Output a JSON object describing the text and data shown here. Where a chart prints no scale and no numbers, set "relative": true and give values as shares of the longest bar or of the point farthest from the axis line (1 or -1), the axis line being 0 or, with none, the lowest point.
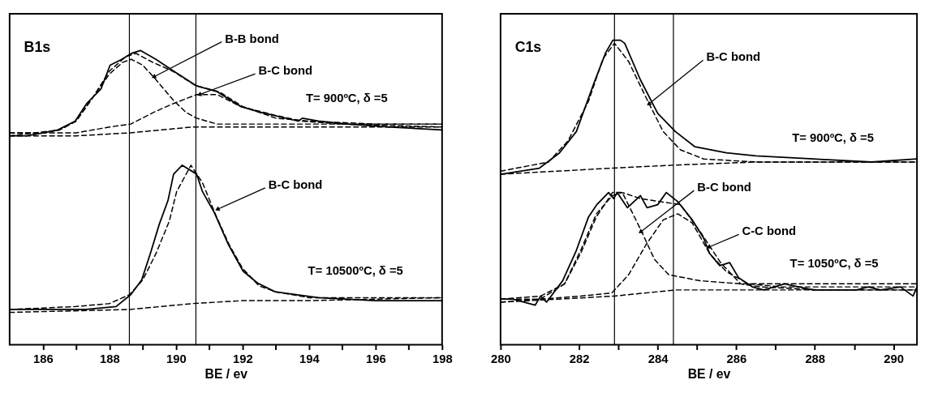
{
  "chart_data": [
    {
      "type": "line",
      "title": "B1s",
      "xlabel": "BE / ev",
      "relative": true,
      "xlim": [
        185,
        198
      ],
      "xticks": [
        186,
        {
          "value": 187,
          "label": null
        },
        188,
        {
          "value": 189,
          "label": null
        },
        190,
        {
          "value": 191,
          "label": null
        },
        192,
        {
          "value": 193,
          "label": null
        },
        194,
        {
          "value": 195,
          "label": null
        },
        196,
        {
          "value": 197,
          "label": null
        },
        198
      ],
      "grid": false,
      "tick_labels": "x",
      "series": [
        {
          "color": "#000000",
          "line_style": "solid",
          "x": [
            185,
            185.5,
            186,
            186.45,
            186.97,
            187.32,
            187.75,
            188.02,
            188.37,
            188.66,
            188.93,
            189.4,
            189.93,
            190.62,
            191.24,
            191.94,
            192.54,
            193.68,
            193.8,
            194.28,
            195.15,
            196.46,
            198
          ],
          "values": [
            0.71,
            0.71,
            0.72,
            0.73,
            0.76,
            0.82,
            0.87,
            0.95,
            0.97,
            0.99,
            1,
            0.97,
            0.93,
            0.88,
            0.86,
            0.81,
            0.79,
            0.76,
            0.77,
            0.76,
            0.75,
            0.74,
            0.73
          ]
        },
        {
          "color": "#000000",
          "line_style": "dashed",
          "x": [
            185,
            186.5,
            187,
            187.5,
            188,
            188.5,
            188.8,
            189.3,
            189.9,
            190.6,
            191.3,
            192,
            193,
            194,
            196,
            198
          ],
          "values": [
            0.71,
            0.73,
            0.76,
            0.84,
            0.93,
            0.98,
            0.99,
            0.96,
            0.93,
            0.88,
            0.86,
            0.81,
            0.77,
            0.76,
            0.75,
            0.75
          ]
        },
        {
          "color": "#000000",
          "line_style": "dashed",
          "x": [
            185,
            186,
            186.5,
            187,
            187.5,
            188,
            188.4,
            188.66,
            189,
            189.33,
            189.93,
            190.3,
            190.62,
            191.24,
            192,
            194,
            198
          ],
          "values": [
            0.72,
            0.72,
            0.73,
            0.76,
            0.84,
            0.92,
            0.96,
            0.97,
            0.95,
            0.91,
            0.83,
            0.79,
            0.77,
            0.75,
            0.75,
            0.75,
            0.75
          ]
        },
        {
          "color": "#000000",
          "line_style": "dashed",
          "x": [
            185,
            187,
            188,
            188.64,
            189.33,
            189.93,
            190.62,
            191.24,
            191.94,
            192.97,
            193.8,
            195,
            198
          ],
          "values": [
            0.72,
            0.72,
            0.74,
            0.75,
            0.79,
            0.82,
            0.85,
            0.85,
            0.81,
            0.78,
            0.76,
            0.75,
            0.74
          ]
        },
        {
          "color": "#000000",
          "line_style": "dashed",
          "x": [
            185,
            187,
            188.6,
            190.5,
            193,
            198
          ],
          "values": [
            0.71,
            0.71,
            0.72,
            0.74,
            0.74,
            0.74
          ]
        },
        {
          "color": "#000000",
          "line_style": "solid",
          "x": [
            185,
            187.3,
            188.2,
            188.64,
            188.97,
            189.23,
            189.5,
            189.76,
            189.93,
            190.19,
            190.62,
            190.8,
            191.15,
            191.58,
            192.02,
            192.45,
            192.98,
            194.28,
            196,
            198
          ],
          "values": [
            0.12,
            0.12,
            0.13,
            0.17,
            0.22,
            0.31,
            0.41,
            0.49,
            0.58,
            0.61,
            0.58,
            0.52,
            0.45,
            0.34,
            0.25,
            0.21,
            0.18,
            0.16,
            0.15,
            0.15
          ]
        },
        {
          "color": "#000000",
          "line_style": "dashed",
          "x": [
            185,
            187,
            188,
            188.6,
            189,
            189.4,
            189.8,
            190.02,
            190.45,
            190.8,
            191.2,
            191.6,
            192,
            192.5,
            193,
            194,
            196,
            198
          ],
          "values": [
            0.12,
            0.13,
            0.14,
            0.17,
            0.22,
            0.31,
            0.42,
            0.52,
            0.61,
            0.55,
            0.44,
            0.34,
            0.26,
            0.2,
            0.18,
            0.16,
            0.16,
            0.16
          ]
        },
        {
          "color": "#000000",
          "line_style": "dashed",
          "x": [
            185,
            188.6,
            190.5,
            192,
            194,
            198
          ],
          "values": [
            0.11,
            0.12,
            0.14,
            0.15,
            0.15,
            0.16
          ]
        }
      ],
      "ref_lines": [
        {
          "axis": "x",
          "value": 188.6,
          "color": "#000000"
        },
        {
          "axis": "x",
          "value": 190.6,
          "color": "#000000"
        }
      ],
      "annotations": [
        {
          "text": "B-B bond",
          "x": 189.33,
          "y": 0.91
        },
        {
          "text": "B-C bond",
          "x": 190.7,
          "y": 0.85
        },
        {
          "text": "B-C bond",
          "x": 191.24,
          "y": 0.46
        },
        "T= 900ºC, δ =5",
        "T= 10500ºC, δ =5"
      ]
    },
    {
      "type": "line",
      "title": "C1s",
      "xlabel": "BE / ev",
      "relative": true,
      "xlim": [
        280,
        290.6
      ],
      "xticks": [
        280,
        {
          "value": 281,
          "label": null
        },
        282,
        {
          "value": 283,
          "label": null
        },
        284,
        {
          "value": 285,
          "label": null
        },
        286,
        {
          "value": 287,
          "label": null
        },
        288,
        {
          "value": 289,
          "label": null
        },
        290
      ],
      "grid": false,
      "tick_labels": "x",
      "series": [
        {
          "color": "#000000",
          "line_style": "solid",
          "x": [
            280,
            280.99,
            281.5,
            281.93,
            282.38,
            282.68,
            282.86,
            283.05,
            283.16,
            283.56,
            284,
            284.45,
            284.95,
            285.75,
            286.5,
            287.96,
            289.44,
            290.6
          ],
          "values": [
            0.56,
            0.58,
            0.63,
            0.7,
            0.86,
            0.96,
            1,
            1,
            0.99,
            0.87,
            0.76,
            0.7,
            0.65,
            0.63,
            0.62,
            0.61,
            0.6,
            0.61
          ]
        },
        {
          "color": "#000000",
          "line_style": "dashed",
          "x": [
            280,
            281.22,
            281.72,
            282.24,
            282.61,
            282.9,
            283.26,
            283.71,
            284.14,
            284.58,
            285.17,
            286.52,
            290.6
          ],
          "values": [
            0.57,
            0.6,
            0.67,
            0.8,
            0.94,
            0.99,
            0.93,
            0.81,
            0.7,
            0.64,
            0.61,
            0.6,
            0.6
          ]
        },
        {
          "color": "#000000",
          "line_style": "dashed",
          "x": [
            280,
            282.85,
            284.45,
            286.5,
            290.6
          ],
          "values": [
            0.56,
            0.58,
            0.59,
            0.6,
            0.6
          ]
        },
        {
          "color": "#000000",
          "line_style": "solid",
          "x": [
            280,
            280.31,
            280.88,
            281.02,
            281.17,
            281.58,
            281.93,
            282.24,
            282.45,
            282.75,
            282.88,
            282.97,
            283.23,
            283.56,
            283.73,
            284,
            284.22,
            284.51,
            284.88,
            285.17,
            285.32,
            285.58,
            285.83,
            286.06,
            286.41,
            286.7,
            287.23,
            287.96,
            288.65,
            289.06,
            289.36,
            289.67,
            290.18,
            290.5,
            290.6
          ],
          "values": [
            0.15,
            0.15,
            0.13,
            0.16,
            0.14,
            0.21,
            0.31,
            0.42,
            0.46,
            0.5,
            0.48,
            0.5,
            0.45,
            0.49,
            0.45,
            0.46,
            0.5,
            0.47,
            0.41,
            0.35,
            0.3,
            0.26,
            0.27,
            0.22,
            0.19,
            0.18,
            0.2,
            0.18,
            0.18,
            0.18,
            0.19,
            0.18,
            0.19,
            0.16,
            0.19
          ]
        },
        {
          "color": "#000000",
          "line_style": "dashed",
          "x": [
            280,
            281.02,
            281.63,
            282.04,
            282.44,
            282.85,
            283.1,
            283.56,
            284.07,
            284.58,
            285.09,
            285.6,
            286.11,
            286.62,
            288.14,
            290.6
          ],
          "values": [
            0.15,
            0.16,
            0.2,
            0.31,
            0.43,
            0.49,
            0.5,
            0.48,
            0.47,
            0.46,
            0.37,
            0.27,
            0.2,
            0.19,
            0.18,
            0.18
          ]
        },
        {
          "color": "#000000",
          "line_style": "dashed",
          "x": [
            280,
            281.02,
            281.63,
            282.04,
            282.44,
            282.85,
            283.1,
            283.56,
            283.92,
            284.28,
            285.09,
            286.11,
            290.6
          ],
          "values": [
            0.15,
            0.15,
            0.2,
            0.3,
            0.42,
            0.5,
            0.5,
            0.38,
            0.28,
            0.23,
            0.21,
            0.2,
            0.2
          ]
        },
        {
          "color": "#000000",
          "line_style": "dashed",
          "x": [
            280,
            282.04,
            282.83,
            283.26,
            283.71,
            284.14,
            284.51,
            284.88,
            285.32,
            285.75,
            286.31,
            287.13,
            290.6
          ],
          "values": [
            0.14,
            0.16,
            0.17,
            0.23,
            0.33,
            0.41,
            0.43,
            0.4,
            0.3,
            0.24,
            0.2,
            0.19,
            0.19
          ]
        },
        {
          "color": "#000000",
          "line_style": "dashed",
          "x": [
            280,
            281.5,
            282.9,
            284.45,
            286.1,
            290.6
          ],
          "values": [
            0.14,
            0.15,
            0.16,
            0.18,
            0.18,
            0.18
          ]
        }
      ],
      "ref_lines": [
        {
          "axis": "x",
          "value": 282.9,
          "color": "#000000"
        },
        {
          "axis": "x",
          "value": 284.4,
          "color": "#000000"
        }
      ],
      "annotations": [
        {
          "text": "B-C bond",
          "x": 283.77,
          "y": 0.79
        },
        {
          "text": "B-C bond",
          "x": 283.56,
          "y": 0.37
        },
        {
          "text": "C-C bond",
          "x": 285.29,
          "y": 0.32
        },
        "T= 900ºC, δ =5",
        "T= 1050ºC, δ =5"
      ]
    }
  ]
}
